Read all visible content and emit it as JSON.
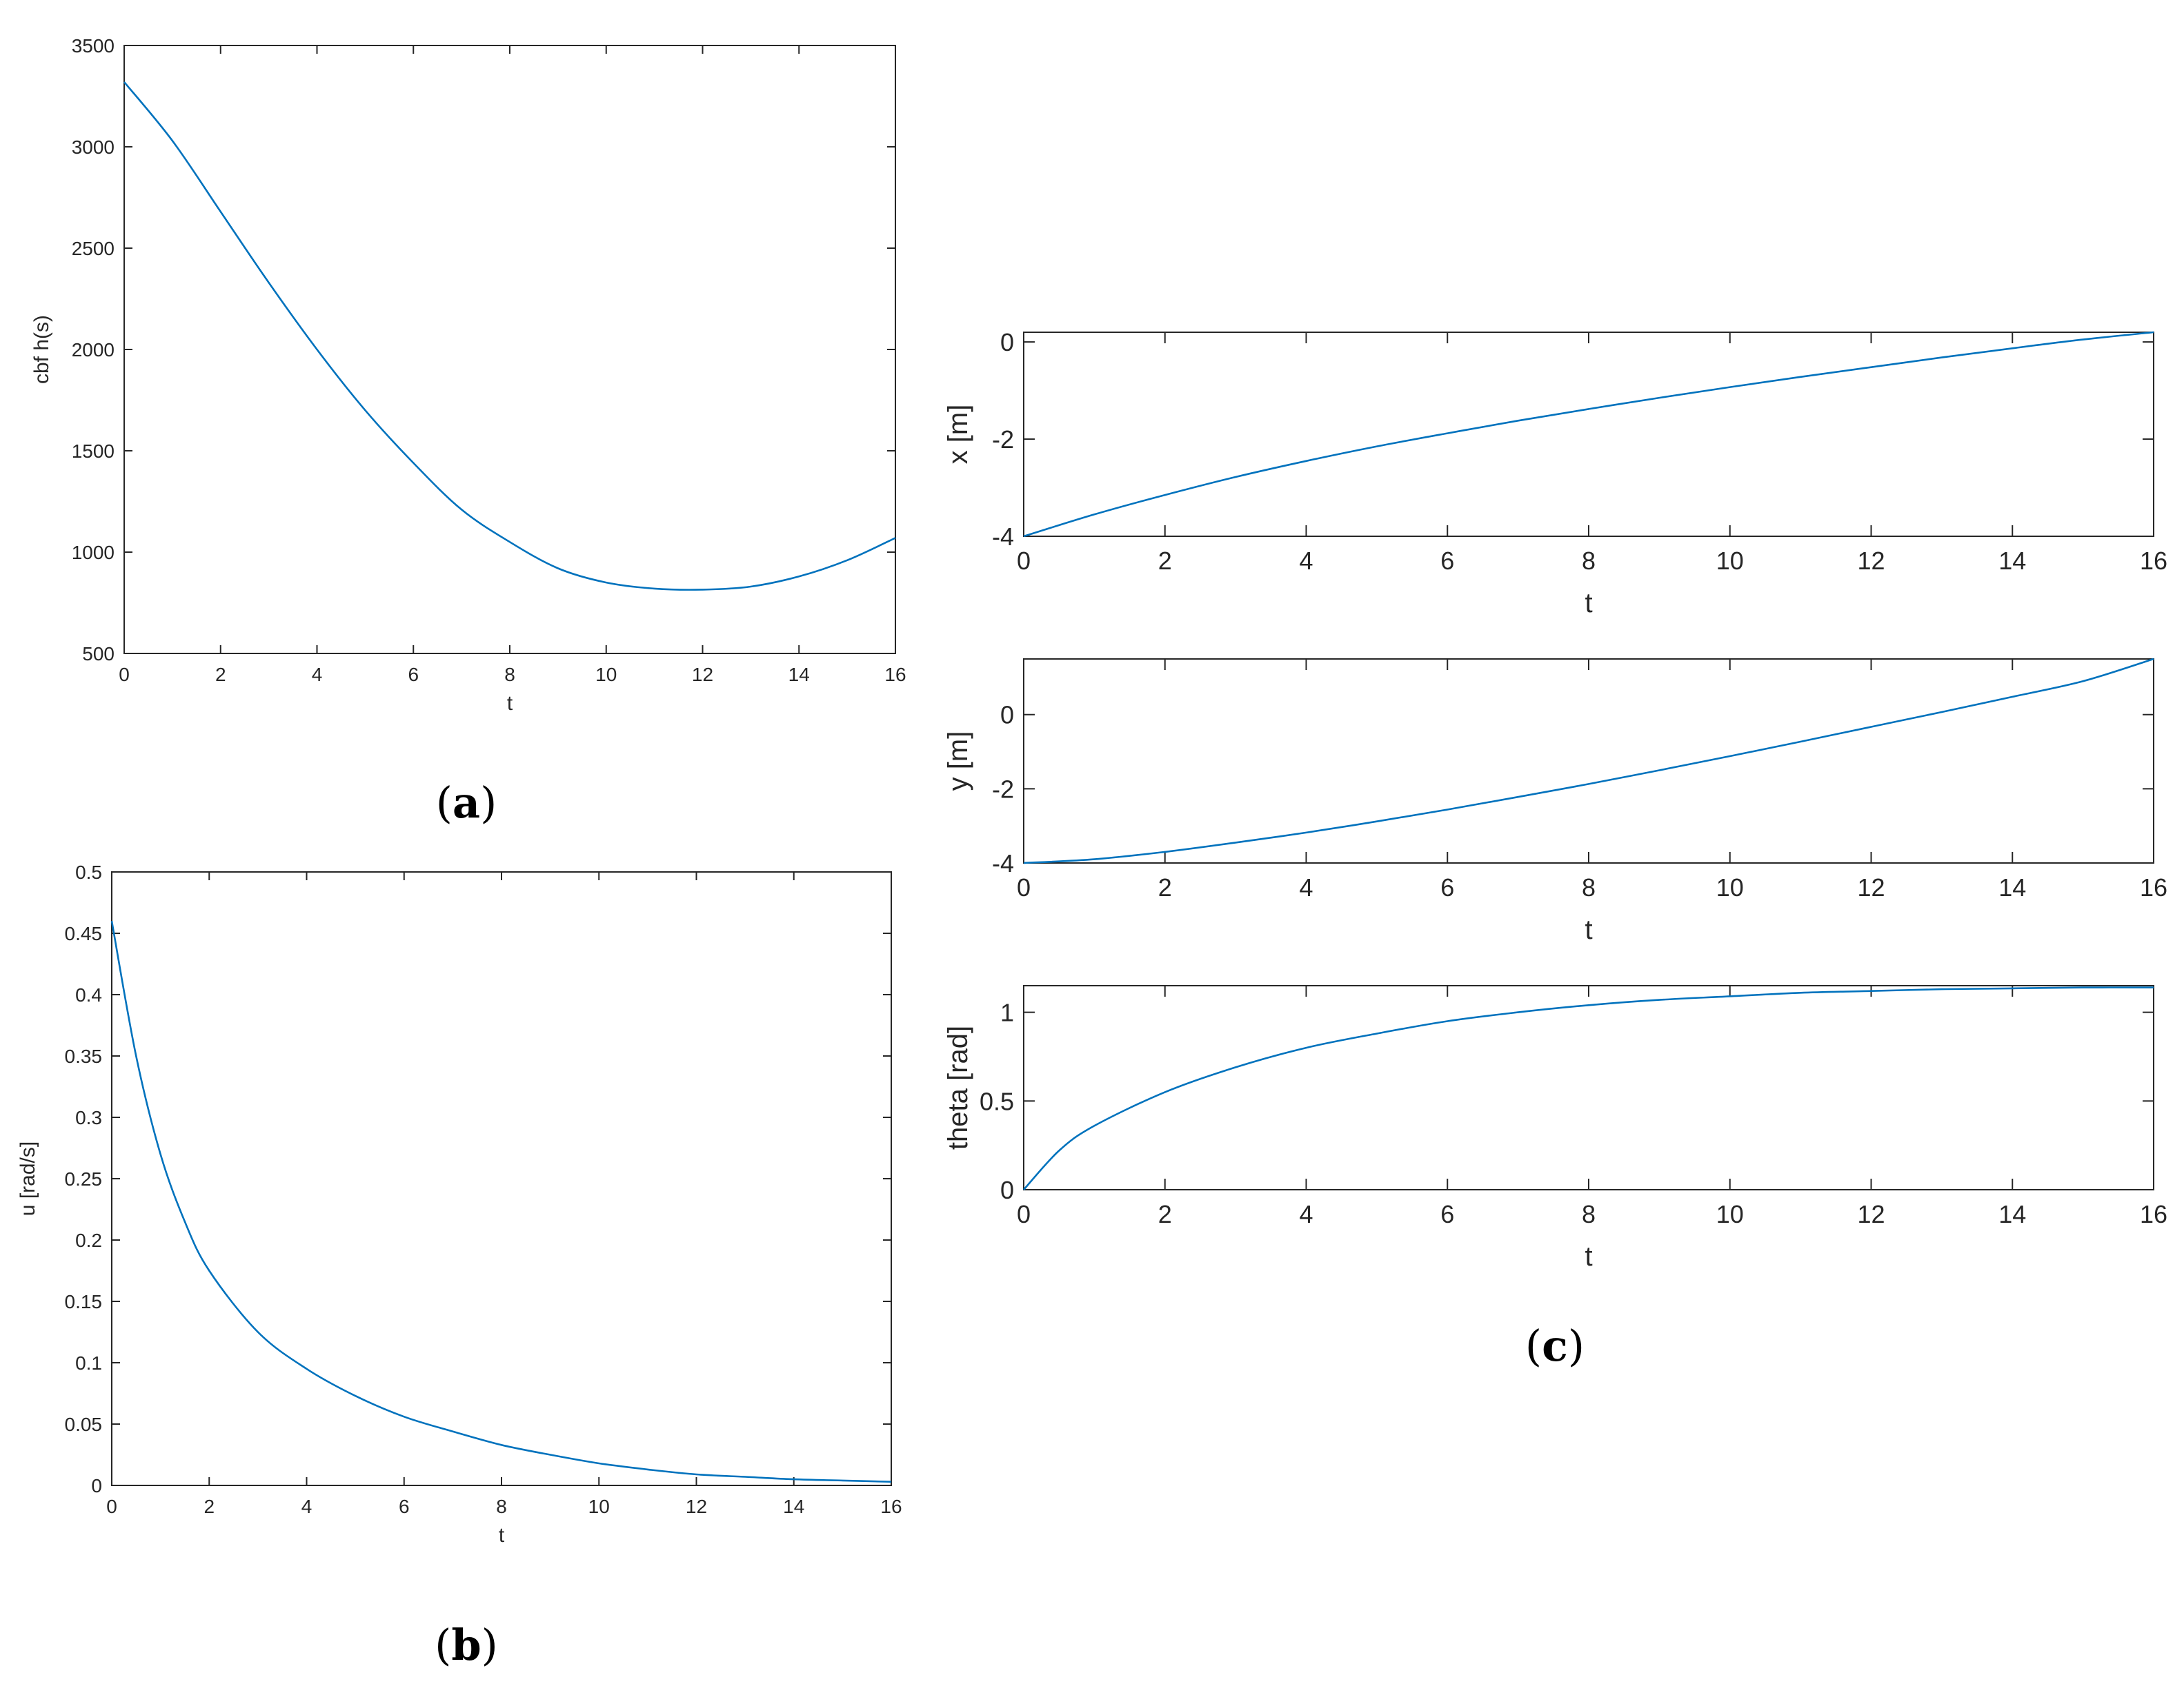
{
  "chart_data": [
    {
      "id": "a",
      "type": "line",
      "caption": "a",
      "xlabel": "t",
      "ylabel": "cbf h(s)",
      "xlim": [
        0,
        16
      ],
      "ylim": [
        500,
        3500
      ],
      "xticks": [
        0,
        2,
        4,
        6,
        8,
        10,
        12,
        14,
        16
      ],
      "yticks": [
        500,
        1000,
        1500,
        2000,
        2500,
        3000,
        3500
      ],
      "grid": false,
      "color": "#0072bd",
      "x": [
        0,
        1,
        2,
        3,
        4,
        5,
        6,
        7,
        8,
        9,
        10,
        11,
        12,
        13,
        14,
        15,
        16
      ],
      "y": [
        3320,
        3030,
        2680,
        2330,
        2000,
        1700,
        1440,
        1210,
        1050,
        920,
        850,
        820,
        815,
        830,
        880,
        960,
        1070
      ]
    },
    {
      "id": "b",
      "type": "line",
      "caption": "b",
      "xlabel": "t",
      "ylabel": "u [rad/s]",
      "xlim": [
        0,
        16
      ],
      "ylim": [
        0,
        0.5
      ],
      "xticks": [
        0,
        2,
        4,
        6,
        8,
        10,
        12,
        14,
        16
      ],
      "yticks": [
        0,
        0.05,
        0.1,
        0.15,
        0.2,
        0.25,
        0.3,
        0.35,
        0.4,
        0.45,
        0.5
      ],
      "grid": false,
      "color": "#0072bd",
      "x": [
        0,
        0.5,
        1,
        1.5,
        2,
        3,
        4,
        5,
        6,
        7,
        8,
        9,
        10,
        11,
        12,
        13,
        14,
        15,
        16
      ],
      "y": [
        0.46,
        0.35,
        0.27,
        0.215,
        0.175,
        0.125,
        0.095,
        0.073,
        0.056,
        0.044,
        0.033,
        0.025,
        0.018,
        0.013,
        0.009,
        0.007,
        0.005,
        0.004,
        0.003
      ]
    },
    {
      "id": "c1",
      "type": "line",
      "xlabel": "t",
      "ylabel": "x [m]",
      "xlim": [
        0,
        16
      ],
      "ylim": [
        -4,
        0.2
      ],
      "xticks": [
        0,
        2,
        4,
        6,
        8,
        10,
        12,
        14,
        16
      ],
      "yticks": [
        -4,
        -2,
        0
      ],
      "grid": false,
      "color": "#0072bd",
      "x": [
        0,
        1,
        2,
        3,
        4,
        5,
        6,
        7,
        8,
        9,
        10,
        11,
        12,
        13,
        14,
        15,
        16
      ],
      "y": [
        -4.0,
        -3.55,
        -3.15,
        -2.78,
        -2.45,
        -2.15,
        -1.88,
        -1.62,
        -1.38,
        -1.15,
        -0.93,
        -0.72,
        -0.52,
        -0.32,
        -0.13,
        0.05,
        0.2
      ]
    },
    {
      "id": "c2",
      "type": "line",
      "xlabel": "t",
      "ylabel": "y [m]",
      "xlim": [
        0,
        16
      ],
      "ylim": [
        -4,
        1.5
      ],
      "xticks": [
        0,
        2,
        4,
        6,
        8,
        10,
        12,
        14,
        16
      ],
      "yticks": [
        -4,
        -2,
        0
      ],
      "grid": false,
      "color": "#0072bd",
      "x": [
        0,
        1,
        2,
        3,
        4,
        5,
        6,
        7,
        8,
        9,
        10,
        11,
        12,
        13,
        14,
        15,
        16
      ],
      "y": [
        -4.0,
        -3.9,
        -3.7,
        -3.45,
        -3.18,
        -2.88,
        -2.56,
        -2.22,
        -1.87,
        -1.5,
        -1.12,
        -0.73,
        -0.33,
        0.07,
        0.48,
        0.9,
        1.5
      ]
    },
    {
      "id": "c3",
      "type": "line",
      "caption": "c",
      "xlabel": "t",
      "ylabel": "theta [rad]",
      "xlim": [
        0,
        16
      ],
      "ylim": [
        0,
        1.15
      ],
      "xticks": [
        0,
        2,
        4,
        6,
        8,
        10,
        12,
        14,
        16
      ],
      "yticks": [
        0,
        0.5,
        1
      ],
      "grid": false,
      "color": "#0072bd",
      "x": [
        0,
        0.5,
        1,
        2,
        3,
        4,
        5,
        6,
        7,
        8,
        9,
        10,
        11,
        12,
        13,
        14,
        15,
        16
      ],
      "y": [
        0,
        0.22,
        0.36,
        0.55,
        0.69,
        0.8,
        0.88,
        0.95,
        1.0,
        1.04,
        1.07,
        1.09,
        1.11,
        1.12,
        1.13,
        1.135,
        1.14,
        1.14
      ]
    }
  ]
}
